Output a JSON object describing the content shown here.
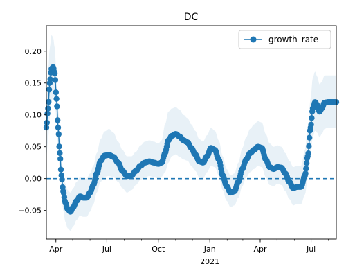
{
  "chart_data": {
    "type": "line",
    "title": "DC",
    "xlabel": "",
    "ylabel": "",
    "x_range": [
      "2020-03-15",
      "2021-08-15"
    ],
    "ylim": [
      -0.095,
      0.24
    ],
    "y_ticks": [
      -0.05,
      0.0,
      0.05,
      0.1,
      0.15,
      0.2
    ],
    "y_tick_labels": [
      "−0.05",
      "0.00",
      "0.05",
      "0.10",
      "0.15",
      "0.20"
    ],
    "x_ticks": [
      {
        "date": "2020-04-01",
        "label": "Apr",
        "sublabel": ""
      },
      {
        "date": "2020-07-01",
        "label": "Jul",
        "sublabel": ""
      },
      {
        "date": "2020-10-01",
        "label": "Oct",
        "sublabel": ""
      },
      {
        "date": "2021-01-01",
        "label": "Jan",
        "sublabel": "2021"
      },
      {
        "date": "2021-04-01",
        "label": "Apr",
        "sublabel": ""
      },
      {
        "date": "2021-07-01",
        "label": "Jul",
        "sublabel": ""
      }
    ],
    "grid": false,
    "legend": {
      "position": "top-right"
    },
    "reference_line": {
      "y": 0,
      "style": "dashed",
      "color": "#1f77b4"
    },
    "series": [
      {
        "name": "growth_rate",
        "color": "#1f77b4",
        "marker": "circle",
        "band_color": "#1f77b4",
        "band_opacity": 0.1,
        "points": [
          {
            "x": "2020-03-15",
            "y": 0.08,
            "lo": 0.035,
            "hi": 0.125
          },
          {
            "x": "2020-03-18",
            "y": 0.11,
            "lo": 0.06,
            "hi": 0.165
          },
          {
            "x": "2020-03-21",
            "y": 0.15,
            "lo": 0.095,
            "hi": 0.205
          },
          {
            "x": "2020-03-24",
            "y": 0.172,
            "lo": 0.12,
            "hi": 0.225
          },
          {
            "x": "2020-03-27",
            "y": 0.175,
            "lo": 0.13,
            "hi": 0.222
          },
          {
            "x": "2020-03-30",
            "y": 0.165,
            "lo": 0.125,
            "hi": 0.205
          },
          {
            "x": "2020-04-02",
            "y": 0.125,
            "lo": 0.09,
            "hi": 0.16
          },
          {
            "x": "2020-04-05",
            "y": 0.08,
            "lo": 0.05,
            "hi": 0.11
          },
          {
            "x": "2020-04-08",
            "y": 0.04,
            "lo": 0.01,
            "hi": 0.07
          },
          {
            "x": "2020-04-11",
            "y": 0.005,
            "lo": -0.025,
            "hi": 0.035
          },
          {
            "x": "2020-04-14",
            "y": -0.02,
            "lo": -0.05,
            "hi": 0.01
          },
          {
            "x": "2020-04-18",
            "y": -0.038,
            "lo": -0.068,
            "hi": -0.008
          },
          {
            "x": "2020-04-22",
            "y": -0.048,
            "lo": -0.078,
            "hi": -0.018
          },
          {
            "x": "2020-04-27",
            "y": -0.052,
            "lo": -0.082,
            "hi": -0.022
          },
          {
            "x": "2020-05-02",
            "y": -0.045,
            "lo": -0.075,
            "hi": -0.015
          },
          {
            "x": "2020-05-08",
            "y": -0.035,
            "lo": -0.065,
            "hi": -0.005
          },
          {
            "x": "2020-05-14",
            "y": -0.028,
            "lo": -0.058,
            "hi": 0.002
          },
          {
            "x": "2020-05-20",
            "y": -0.03,
            "lo": -0.06,
            "hi": 0.0
          },
          {
            "x": "2020-05-26",
            "y": -0.03,
            "lo": -0.06,
            "hi": 0.0
          },
          {
            "x": "2020-06-01",
            "y": -0.022,
            "lo": -0.052,
            "hi": 0.008
          },
          {
            "x": "2020-06-07",
            "y": -0.01,
            "lo": -0.04,
            "hi": 0.02
          },
          {
            "x": "2020-06-13",
            "y": 0.008,
            "lo": -0.022,
            "hi": 0.04
          },
          {
            "x": "2020-06-20",
            "y": 0.028,
            "lo": -0.005,
            "hi": 0.062
          },
          {
            "x": "2020-06-27",
            "y": 0.036,
            "lo": 0.003,
            "hi": 0.074
          },
          {
            "x": "2020-07-05",
            "y": 0.037,
            "lo": 0.004,
            "hi": 0.078
          },
          {
            "x": "2020-07-13",
            "y": 0.034,
            "lo": 0.002,
            "hi": 0.072
          },
          {
            "x": "2020-07-21",
            "y": 0.025,
            "lo": -0.005,
            "hi": 0.058
          },
          {
            "x": "2020-07-29",
            "y": 0.012,
            "lo": -0.015,
            "hi": 0.045
          },
          {
            "x": "2020-08-06",
            "y": 0.004,
            "lo": -0.022,
            "hi": 0.035
          },
          {
            "x": "2020-08-14",
            "y": 0.005,
            "lo": -0.018,
            "hi": 0.035
          },
          {
            "x": "2020-08-22",
            "y": 0.012,
            "lo": -0.01,
            "hi": 0.042
          },
          {
            "x": "2020-08-30",
            "y": 0.02,
            "lo": -0.002,
            "hi": 0.052
          },
          {
            "x": "2020-09-07",
            "y": 0.025,
            "lo": 0.002,
            "hi": 0.058
          },
          {
            "x": "2020-09-15",
            "y": 0.027,
            "lo": 0.004,
            "hi": 0.06
          },
          {
            "x": "2020-09-23",
            "y": 0.025,
            "lo": 0.002,
            "hi": 0.058
          },
          {
            "x": "2020-10-01",
            "y": 0.023,
            "lo": 0.0,
            "hi": 0.055
          },
          {
            "x": "2020-10-07",
            "y": 0.025,
            "lo": 0.003,
            "hi": 0.06
          },
          {
            "x": "2020-10-13",
            "y": 0.04,
            "lo": 0.01,
            "hi": 0.085
          },
          {
            "x": "2020-10-19",
            "y": 0.06,
            "lo": 0.025,
            "hi": 0.105
          },
          {
            "x": "2020-10-25",
            "y": 0.067,
            "lo": 0.035,
            "hi": 0.11
          },
          {
            "x": "2020-11-01",
            "y": 0.07,
            "lo": 0.038,
            "hi": 0.112
          },
          {
            "x": "2020-11-08",
            "y": 0.066,
            "lo": 0.034,
            "hi": 0.108
          },
          {
            "x": "2020-11-15",
            "y": 0.06,
            "lo": 0.03,
            "hi": 0.1
          },
          {
            "x": "2020-11-22",
            "y": 0.057,
            "lo": 0.028,
            "hi": 0.095
          },
          {
            "x": "2020-11-29",
            "y": 0.048,
            "lo": 0.02,
            "hi": 0.085
          },
          {
            "x": "2020-12-06",
            "y": 0.038,
            "lo": 0.012,
            "hi": 0.075
          },
          {
            "x": "2020-12-13",
            "y": 0.027,
            "lo": 0.002,
            "hi": 0.062
          },
          {
            "x": "2020-12-20",
            "y": 0.025,
            "lo": 0.0,
            "hi": 0.058
          },
          {
            "x": "2020-12-27",
            "y": 0.035,
            "lo": 0.01,
            "hi": 0.068
          },
          {
            "x": "2021-01-03",
            "y": 0.048,
            "lo": 0.02,
            "hi": 0.08
          },
          {
            "x": "2021-01-10",
            "y": 0.045,
            "lo": 0.018,
            "hi": 0.075
          },
          {
            "x": "2021-01-17",
            "y": 0.03,
            "lo": 0.005,
            "hi": 0.06
          },
          {
            "x": "2021-01-24",
            "y": 0.005,
            "lo": -0.018,
            "hi": 0.035
          },
          {
            "x": "2021-01-31",
            "y": -0.012,
            "lo": -0.035,
            "hi": 0.015
          },
          {
            "x": "2021-02-07",
            "y": -0.022,
            "lo": -0.045,
            "hi": 0.005
          },
          {
            "x": "2021-02-14",
            "y": -0.02,
            "lo": -0.042,
            "hi": 0.008
          },
          {
            "x": "2021-02-21",
            "y": -0.005,
            "lo": -0.03,
            "hi": 0.025
          },
          {
            "x": "2021-02-28",
            "y": 0.015,
            "lo": -0.012,
            "hi": 0.048
          },
          {
            "x": "2021-03-07",
            "y": 0.03,
            "lo": 0.002,
            "hi": 0.065
          },
          {
            "x": "2021-03-14",
            "y": 0.04,
            "lo": 0.01,
            "hi": 0.078
          },
          {
            "x": "2021-03-21",
            "y": 0.045,
            "lo": 0.015,
            "hi": 0.085
          },
          {
            "x": "2021-03-28",
            "y": 0.05,
            "lo": 0.02,
            "hi": 0.09
          },
          {
            "x": "2021-04-04",
            "y": 0.048,
            "lo": 0.018,
            "hi": 0.088
          },
          {
            "x": "2021-04-11",
            "y": 0.03,
            "lo": 0.002,
            "hi": 0.07
          },
          {
            "x": "2021-04-18",
            "y": 0.018,
            "lo": -0.01,
            "hi": 0.055
          },
          {
            "x": "2021-04-25",
            "y": 0.015,
            "lo": -0.012,
            "hi": 0.05
          },
          {
            "x": "2021-05-02",
            "y": 0.018,
            "lo": -0.008,
            "hi": 0.052
          },
          {
            "x": "2021-05-09",
            "y": 0.017,
            "lo": -0.01,
            "hi": 0.05
          },
          {
            "x": "2021-05-16",
            "y": 0.008,
            "lo": -0.02,
            "hi": 0.04
          },
          {
            "x": "2021-05-23",
            "y": -0.005,
            "lo": -0.032,
            "hi": 0.028
          },
          {
            "x": "2021-05-30",
            "y": -0.015,
            "lo": -0.042,
            "hi": 0.018
          },
          {
            "x": "2021-06-06",
            "y": -0.013,
            "lo": -0.04,
            "hi": 0.02
          },
          {
            "x": "2021-06-13",
            "y": -0.013,
            "lo": -0.04,
            "hi": 0.02
          },
          {
            "x": "2021-06-20",
            "y": 0.005,
            "lo": -0.025,
            "hi": 0.045
          },
          {
            "x": "2021-06-25",
            "y": 0.035,
            "lo": 0.0,
            "hi": 0.08
          },
          {
            "x": "2021-06-30",
            "y": 0.08,
            "lo": 0.04,
            "hi": 0.125
          },
          {
            "x": "2021-07-04",
            "y": 0.11,
            "lo": 0.065,
            "hi": 0.158
          },
          {
            "x": "2021-07-08",
            "y": 0.12,
            "lo": 0.075,
            "hi": 0.168
          },
          {
            "x": "2021-07-12",
            "y": 0.115,
            "lo": 0.072,
            "hi": 0.16
          },
          {
            "x": "2021-07-16",
            "y": 0.105,
            "lo": 0.065,
            "hi": 0.148
          },
          {
            "x": "2021-07-20",
            "y": 0.11,
            "lo": 0.07,
            "hi": 0.152
          },
          {
            "x": "2021-07-25",
            "y": 0.119,
            "lo": 0.078,
            "hi": 0.162
          },
          {
            "x": "2021-07-31",
            "y": 0.12,
            "lo": 0.08,
            "hi": 0.162
          },
          {
            "x": "2021-08-08",
            "y": 0.12,
            "lo": 0.08,
            "hi": 0.162
          },
          {
            "x": "2021-08-15",
            "y": 0.12,
            "lo": 0.08,
            "hi": 0.162
          }
        ]
      }
    ]
  }
}
